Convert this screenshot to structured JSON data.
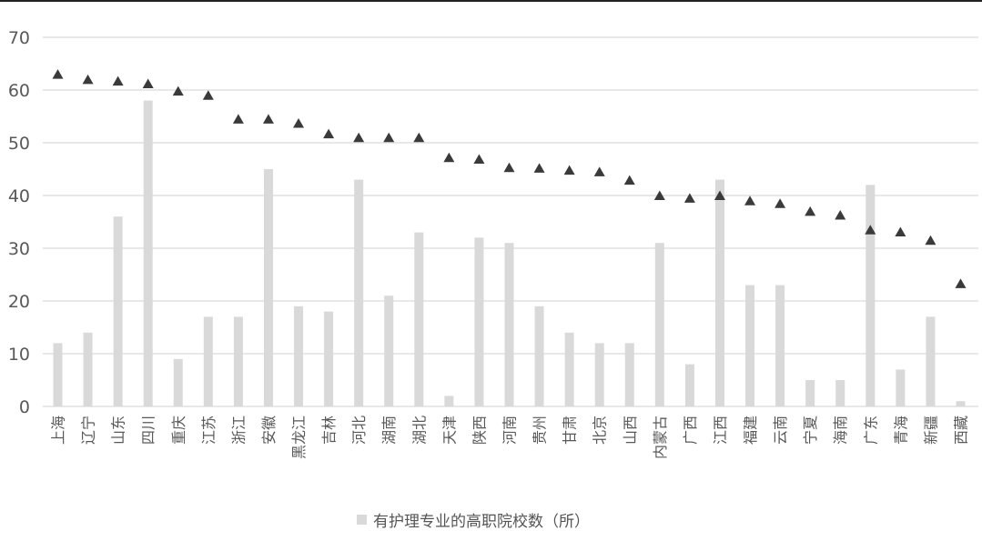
{
  "colors": {
    "bar": "#d9d9d9",
    "marker": "#3a3a3a",
    "grid": "#d9d9d9",
    "axis_text": "#595959"
  },
  "legend": {
    "bar_label": "有护理专业的高职院校数（所）",
    "position": "bottom"
  },
  "chart_data": {
    "type": "bar",
    "title": "",
    "xlabel": "",
    "ylabel": "",
    "ylim": [
      0,
      70
    ],
    "yticks": [
      0,
      10,
      20,
      30,
      40,
      50,
      60,
      70
    ],
    "grid": true,
    "categories": [
      "上海",
      "辽宁",
      "山东",
      "四川",
      "重庆",
      "江苏",
      "浙江",
      "安徽",
      "黑龙江",
      "吉林",
      "河北",
      "湖南",
      "湖北",
      "天津",
      "陕西",
      "河南",
      "贵州",
      "甘肃",
      "北京",
      "山西",
      "内蒙古",
      "广西",
      "江西",
      "福建",
      "云南",
      "宁夏",
      "海南",
      "广东",
      "青海",
      "新疆",
      "西藏"
    ],
    "series": [
      {
        "name": "有护理专业的高职院校数（所）",
        "type": "bar",
        "values": [
          12,
          14,
          36,
          58,
          9,
          17,
          17,
          45,
          19,
          18,
          43,
          21,
          33,
          2,
          32,
          31,
          19,
          14,
          12,
          12,
          31,
          8,
          43,
          23,
          23,
          5,
          5,
          42,
          7,
          17,
          1
        ]
      },
      {
        "type": "scatter",
        "marker": "triangle",
        "values": [
          63,
          62,
          61.7,
          61.2,
          59.8,
          59,
          54.5,
          54.5,
          53.7,
          51.7,
          51,
          51,
          51,
          47.2,
          46.9,
          45.3,
          45.2,
          44.8,
          44.5,
          42.9,
          40,
          39.5,
          40,
          39,
          38.5,
          37,
          36.3,
          33.5,
          33.1,
          31.5,
          23.3
        ]
      }
    ]
  }
}
